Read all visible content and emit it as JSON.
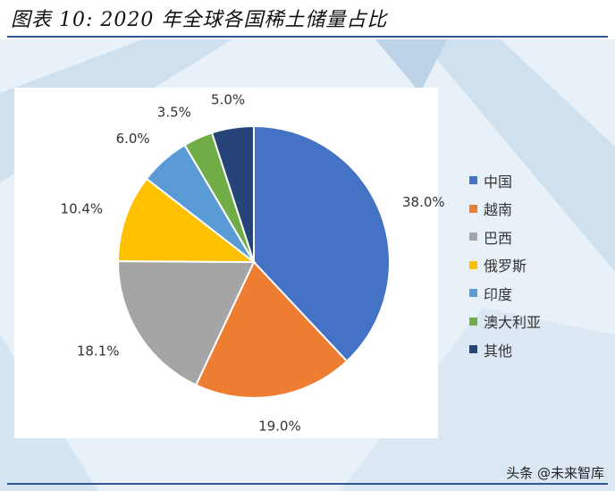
{
  "figure": {
    "title": "图表 10: 2020 年全球各国稀土储量占比",
    "watermark": "头条 @未来智库"
  },
  "chart_data": {
    "type": "pie",
    "title": "",
    "categories": [
      "中国",
      "越南",
      "巴西",
      "俄罗斯",
      "印度",
      "澳大利亚",
      "其他"
    ],
    "values": [
      38.0,
      19.0,
      18.1,
      10.4,
      6.0,
      3.5,
      5.0
    ],
    "labels": [
      "38.0%",
      "19.0%",
      "18.1%",
      "10.4%",
      "6.0%",
      "3.5%",
      "5.0%"
    ],
    "unit": "%",
    "colors": [
      "#4472c4",
      "#ed7d31",
      "#a5a5a5",
      "#ffc000",
      "#5b9bd5",
      "#70ad47",
      "#264478"
    ],
    "legend_position": "right",
    "start_angle": "12 o'clock",
    "direction": "clockwise"
  }
}
